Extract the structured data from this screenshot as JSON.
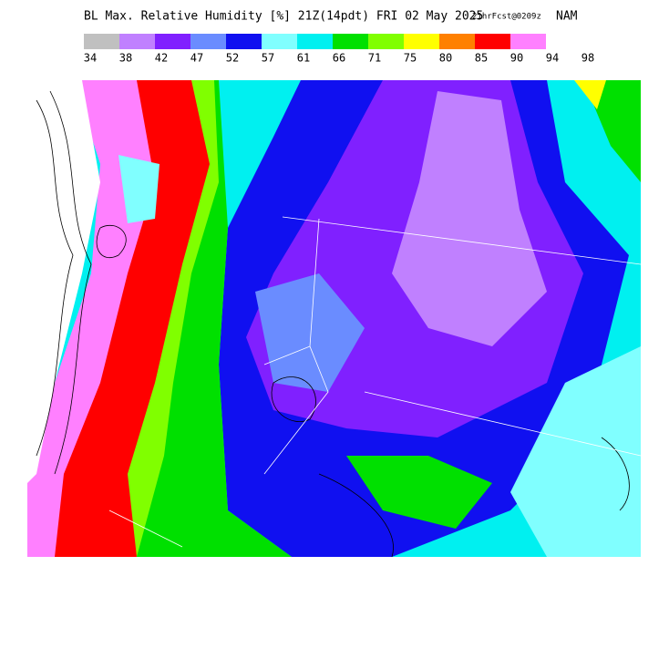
{
  "header": {
    "title": "BL Max. Relative Humidity [%] 21Z(14pdt) FRI 02 May 2025",
    "forecast": "21hrFcst@0209z",
    "model": "NAM"
  },
  "legend": {
    "colors": [
      "#c0c0c0",
      "#c080ff",
      "#8020ff",
      "#6a8cff",
      "#1010f0",
      "#80ffff",
      "#00f0f0",
      "#00e000",
      "#80ff00",
      "#ffff00",
      "#ff8000",
      "#ff0000",
      "#ff80ff"
    ],
    "labels": [
      34,
      38,
      42,
      47,
      52,
      57,
      61,
      66,
      71,
      75,
      80,
      85,
      90,
      94,
      98
    ]
  }
}
